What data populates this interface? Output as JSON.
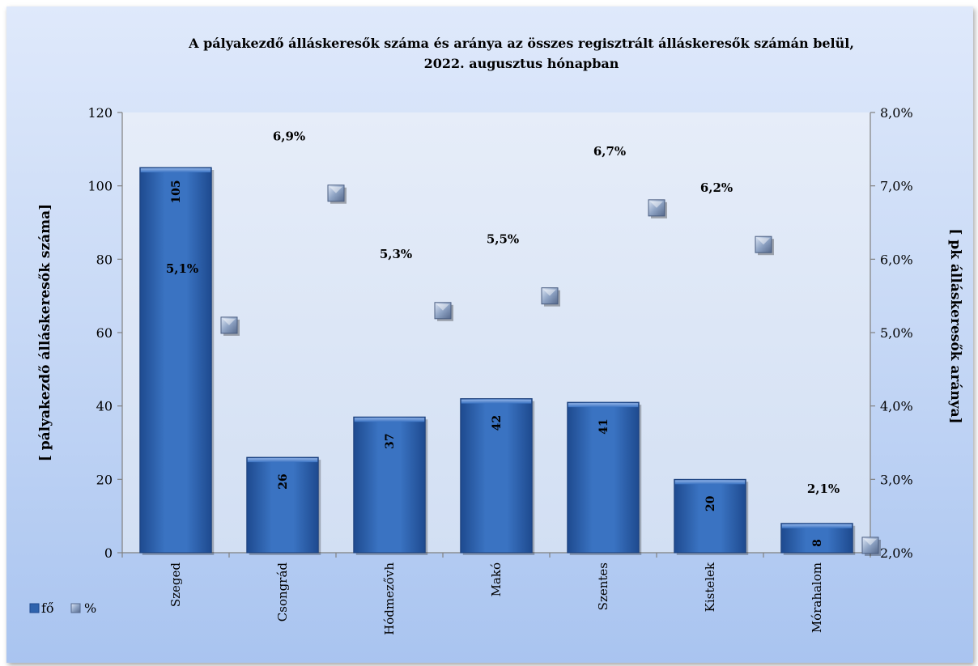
{
  "chart_data": {
    "type": "bar",
    "title": "A pályakezdő álláskeresők száma és aránya az összes regisztrált álláskeresők számán belül,",
    "subtitle": "2022. augusztus hónapban",
    "ylabel": "[ pályakezdő  álláskeresők száma]",
    "y2label": "[ pk álláskeresők aránya]",
    "categories": [
      "Szeged",
      "Csongrád",
      "Hódmezővh",
      "Makó",
      "Szentes",
      "Kistelek",
      "Mórahalom"
    ],
    "series": [
      {
        "name": "fő",
        "type": "bar",
        "axis": "left",
        "values": [
          105,
          26,
          37,
          42,
          41,
          20,
          8
        ],
        "labels": [
          "105",
          "26",
          "37",
          "42",
          "41",
          "20",
          "8"
        ],
        "color": "#2f63ad"
      },
      {
        "name": "%",
        "type": "marker",
        "axis": "right",
        "values": [
          5.1,
          6.9,
          5.3,
          5.5,
          6.7,
          6.2,
          2.1
        ],
        "labels": [
          "5,1%",
          "6,9%",
          "5,3%",
          "5,5%",
          "6,7%",
          "6,2%",
          "2,1%"
        ],
        "color": "#7e93b5"
      }
    ],
    "ylim": [
      0,
      120
    ],
    "yticks": [
      "0",
      "20",
      "40",
      "60",
      "80",
      "100",
      "120"
    ],
    "y2lim": [
      2.0,
      8.0
    ],
    "y2ticks": [
      "2,0%",
      "3,0%",
      "4,0%",
      "5,0%",
      "6,0%",
      "7,0%",
      "8,0%"
    ],
    "grid": false,
    "legend": "bottom-left"
  }
}
